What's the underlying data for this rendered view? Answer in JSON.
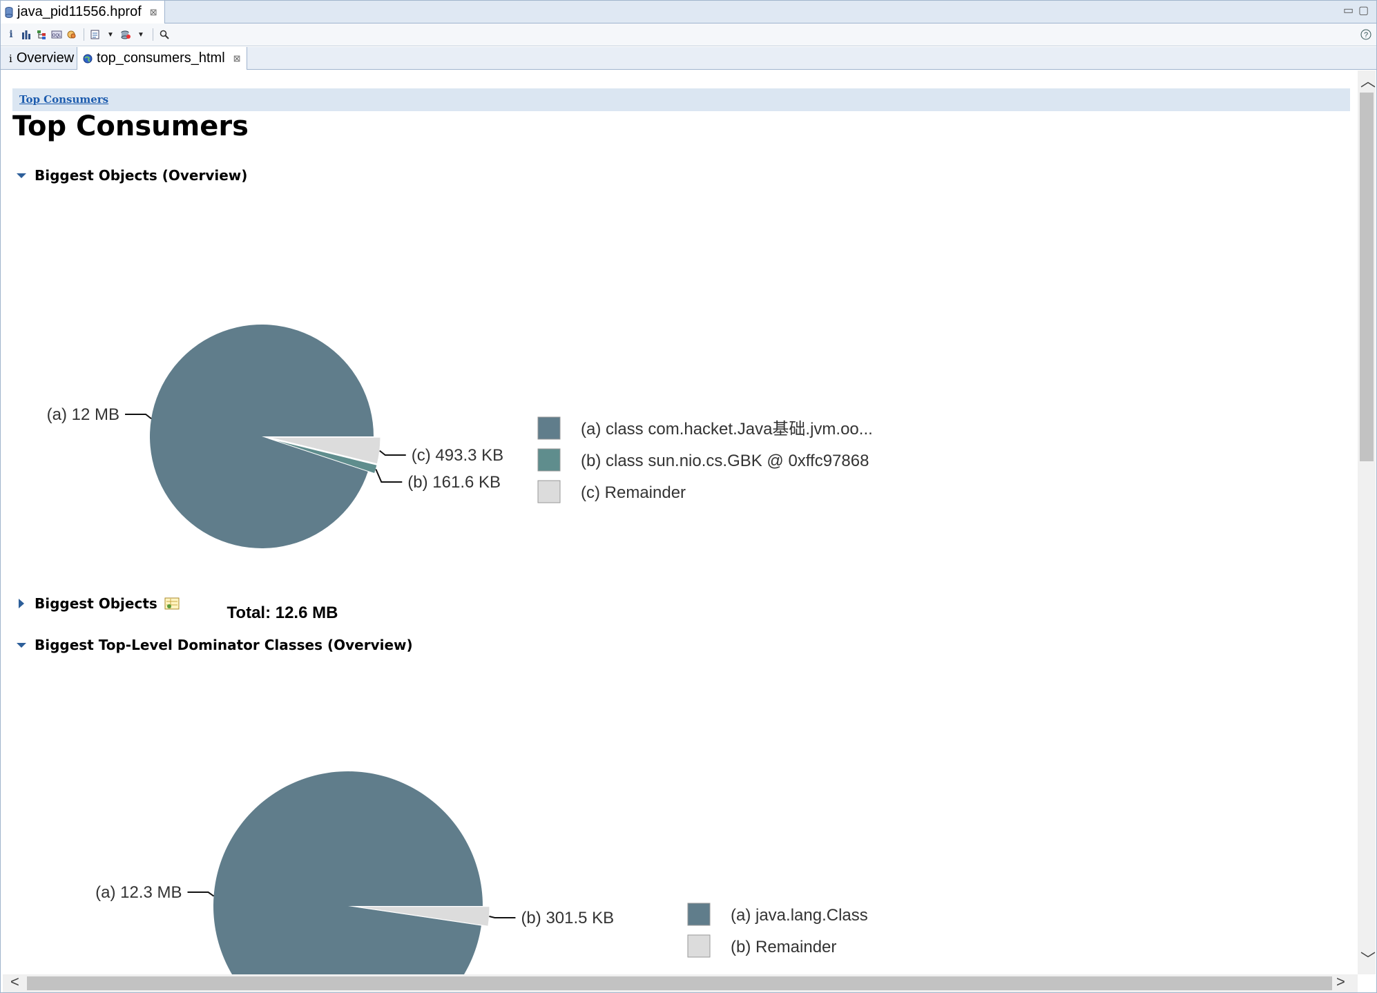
{
  "editor_tab": {
    "label": "java_pid11556.hprof",
    "icon": "database-icon",
    "close": "⊠"
  },
  "toolbar": {
    "buttons": [
      "info-icon",
      "histogram-icon",
      "dominator-tree-icon",
      "oql-icon",
      "thread-icon",
      "report-icon",
      "query-browser-icon",
      "search-icon",
      "help-icon"
    ]
  },
  "subtabs": [
    {
      "label": "Overview",
      "icon": "info-icon"
    },
    {
      "label": "top_consumers_html",
      "icon": "globe-icon",
      "close": "⊠"
    }
  ],
  "page": {
    "breadcrumb": "Top Consumers",
    "title": "Top Consumers",
    "sections": [
      {
        "label": "Biggest Objects (Overview)",
        "expanded": true
      },
      {
        "label": "Biggest Objects",
        "expanded": false
      },
      {
        "label": "Biggest Top-Level Dominator Classes (Overview)",
        "expanded": true
      }
    ]
  },
  "colors": {
    "slice_a": "#607d8b",
    "slice_b": "#5f8d8d",
    "remainder": "#dcdcdc"
  },
  "chart_data": [
    {
      "type": "pie",
      "slices": [
        {
          "id": "(a)",
          "value_label": "12 MB",
          "value_mb": 11.95,
          "legend": "class com.hacket.Java基础.jvm.oo...",
          "color": "#607d8b"
        },
        {
          "id": "(b)",
          "value_label": "161.6 KB",
          "value_mb": 0.158,
          "legend": "class sun.nio.cs.GBK @ 0xffc97868",
          "color": "#5f8d8d"
        },
        {
          "id": "(c)",
          "value_label": "493.3 KB",
          "value_mb": 0.482,
          "legend": "Remainder",
          "color": "#dcdcdc"
        }
      ],
      "total_label": "Total: 12.6 MB"
    },
    {
      "type": "pie",
      "slices": [
        {
          "id": "(a)",
          "value_label": "12.3 MB",
          "value_mb": 12.3,
          "legend": "java.lang.Class",
          "color": "#607d8b"
        },
        {
          "id": "(b)",
          "value_label": "301.5 KB",
          "value_mb": 0.294,
          "legend": "Remainder",
          "color": "#dcdcdc"
        }
      ]
    }
  ]
}
